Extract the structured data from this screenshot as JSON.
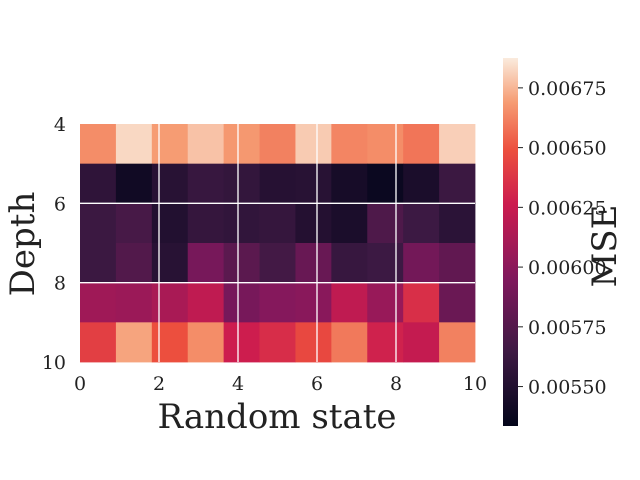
{
  "chart_data": {
    "type": "heatmap",
    "title": "",
    "xlabel": "Random state",
    "ylabel": "Depth",
    "x_ticks": [
      "0",
      "2",
      "4",
      "6",
      "8",
      "10"
    ],
    "y_ticks": [
      "4",
      "6",
      "8",
      "10"
    ],
    "x_range": [
      0,
      10
    ],
    "y_range": [
      4,
      10
    ],
    "y_inverted": true,
    "rows": [
      {
        "depth_start": 4,
        "depth_end": 5,
        "values": [
          0.00665,
          0.00683,
          0.00669,
          0.00678,
          0.00668,
          0.00662,
          0.0068,
          0.00663,
          0.00665,
          0.00659,
          0.00681
        ]
      },
      {
        "depth_start": 5,
        "depth_end": 6,
        "values": [
          0.00557,
          0.00541,
          0.00553,
          0.00561,
          0.00559,
          0.00552,
          0.00553,
          0.00544,
          0.00538,
          0.00546,
          0.00563
        ]
      },
      {
        "depth_start": 6,
        "depth_end": 7,
        "values": [
          0.00563,
          0.00569,
          0.0055,
          0.0056,
          0.00558,
          0.0056,
          0.00551,
          0.00546,
          0.00572,
          0.00564,
          0.00555
        ]
      },
      {
        "depth_start": 7,
        "depth_end": 8,
        "values": [
          0.00563,
          0.00574,
          0.00553,
          0.00591,
          0.00578,
          0.00567,
          0.00584,
          0.00561,
          0.00564,
          0.00589,
          0.00581
        ]
      },
      {
        "depth_start": 8,
        "depth_end": 9,
        "values": [
          0.00608,
          0.00606,
          0.00612,
          0.00621,
          0.00591,
          0.00597,
          0.00599,
          0.00621,
          0.00605,
          0.00635,
          0.00585
        ]
      },
      {
        "depth_start": 9,
        "depth_end": 10,
        "values": [
          0.00642,
          0.00671,
          0.00649,
          0.00665,
          0.00627,
          0.00634,
          0.00646,
          0.0066,
          0.00629,
          0.00623,
          0.00662
        ]
      }
    ],
    "colormap": "rocket",
    "colorbar": {
      "label": "MSE",
      "range": [
        0.005335,
        0.006875
      ],
      "ticks": [
        {
          "value": 0.0055,
          "label": "0.00550"
        },
        {
          "value": 0.00575,
          "label": "0.00575"
        },
        {
          "value": 0.006,
          "label": "0.00600"
        },
        {
          "value": 0.00625,
          "label": "0.00625"
        },
        {
          "value": 0.0065,
          "label": "0.00650"
        },
        {
          "value": 0.00675,
          "label": "0.00675"
        }
      ]
    },
    "grid": true
  }
}
